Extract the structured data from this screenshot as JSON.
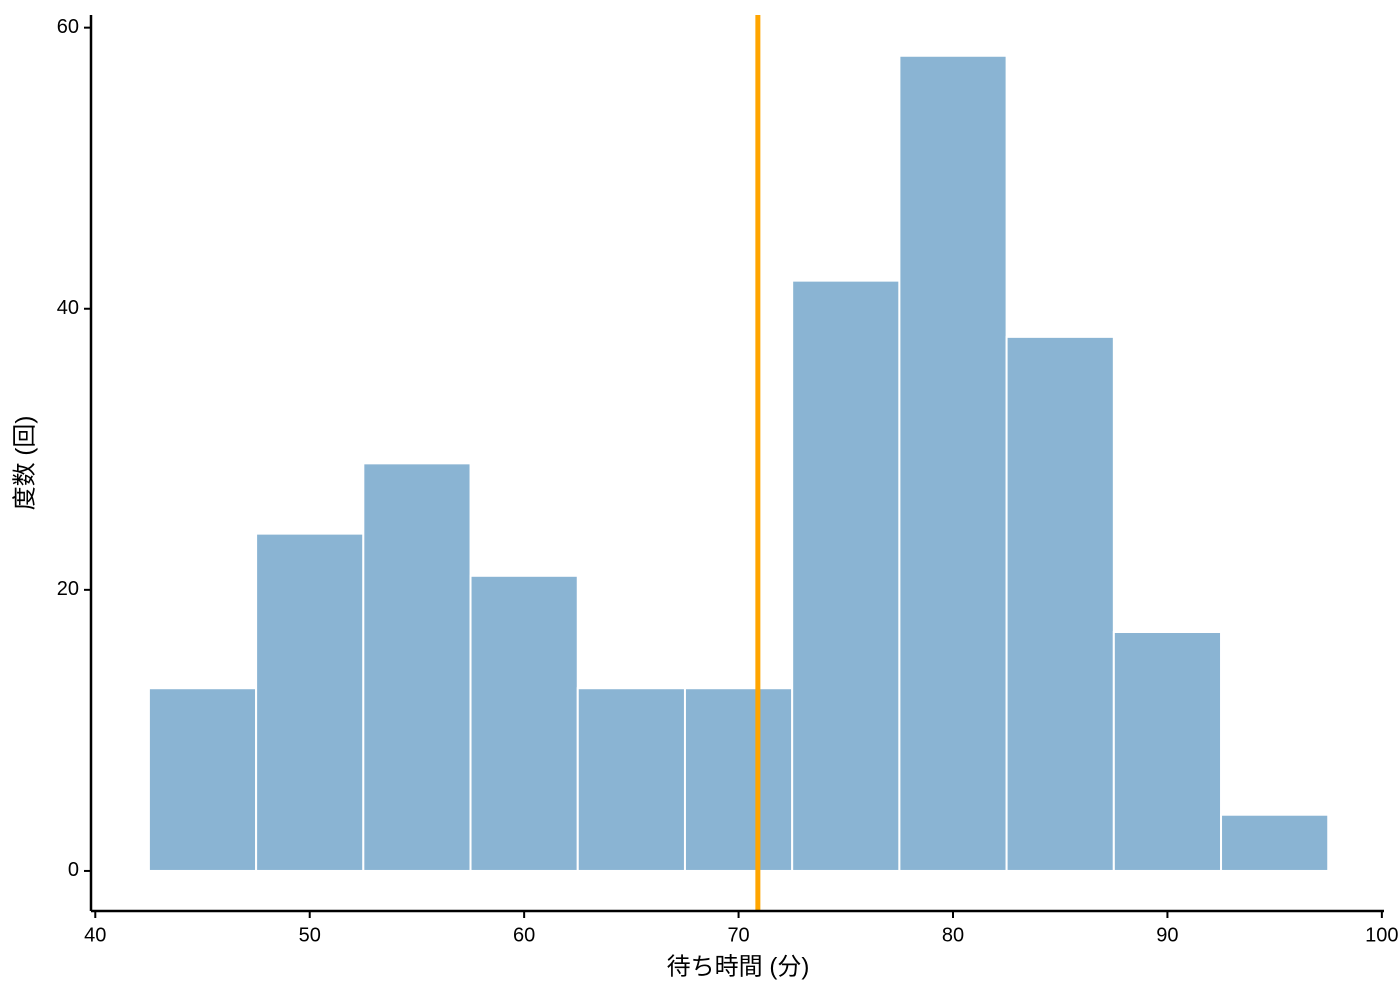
{
  "chart_data": {
    "type": "histogram",
    "xlabel": "待ち時間 (分)",
    "ylabel": "度数 (回)",
    "bins": [
      42.5,
      47.5,
      52.5,
      57.5,
      62.5,
      67.5,
      72.5,
      77.5,
      82.5,
      87.5,
      92.5,
      97.5
    ],
    "values": [
      13,
      24,
      29,
      21,
      13,
      13,
      42,
      58,
      38,
      17,
      4
    ],
    "color": "#8ab4d3",
    "edgecolor": "#ffffff",
    "vline": 70.9,
    "vline_color": "#ffa500",
    "xlim": [
      39.8,
      100.1
    ],
    "ylim": [
      -2.85,
      60.9
    ],
    "xticks": [
      40,
      50,
      60,
      70,
      80,
      90,
      100
    ],
    "yticks": [
      0,
      20,
      40,
      60
    ]
  }
}
